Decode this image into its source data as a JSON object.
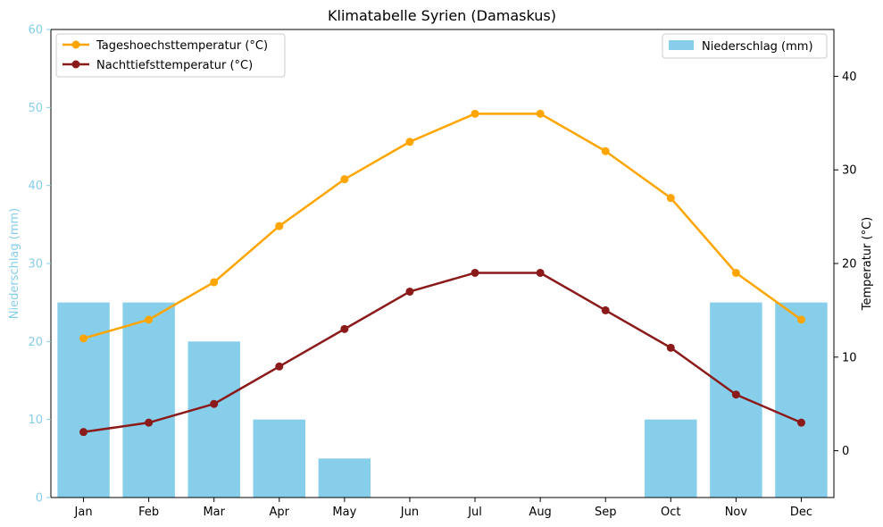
{
  "chart_data": {
    "type": "bar",
    "title": "Klimatabelle Syrien (Damaskus)",
    "categories": [
      "Jan",
      "Feb",
      "Mar",
      "Apr",
      "May",
      "Jun",
      "Jul",
      "Aug",
      "Sep",
      "Oct",
      "Nov",
      "Dec"
    ],
    "y_left": {
      "label": "Niederschlag (mm)",
      "lim": [
        0,
        60
      ],
      "ticks": [
        "0",
        "10",
        "20",
        "30",
        "40",
        "50",
        "60"
      ],
      "color": "#87CEEB"
    },
    "y_right": {
      "label": "Temperatur (°C)",
      "lim": [
        -5,
        45
      ],
      "ticks": [
        "0",
        "10",
        "20",
        "30",
        "40"
      ],
      "color": "#000000"
    },
    "bars": {
      "name": "Niederschlag (mm)",
      "axis": "left",
      "color": "#87CEEB",
      "values": [
        25,
        25,
        20,
        10,
        5,
        0,
        0,
        0,
        0,
        10,
        25,
        25
      ]
    },
    "series": [
      {
        "name": "Tageshoechsttemperatur (°C)",
        "axis": "right",
        "type": "line",
        "color": "#FFA500",
        "values": [
          12,
          14,
          18,
          24,
          29,
          33,
          36,
          36,
          32,
          27,
          19,
          14
        ]
      },
      {
        "name": "Nachttiefsttemperatur (°C)",
        "axis": "right",
        "type": "line",
        "color": "#8B1A1A",
        "values": [
          2,
          3,
          5,
          9,
          13,
          17,
          19,
          19,
          15,
          11,
          6,
          3
        ]
      }
    ],
    "legends": {
      "lines": "top-left",
      "bars": "top-right"
    },
    "grid": false
  }
}
